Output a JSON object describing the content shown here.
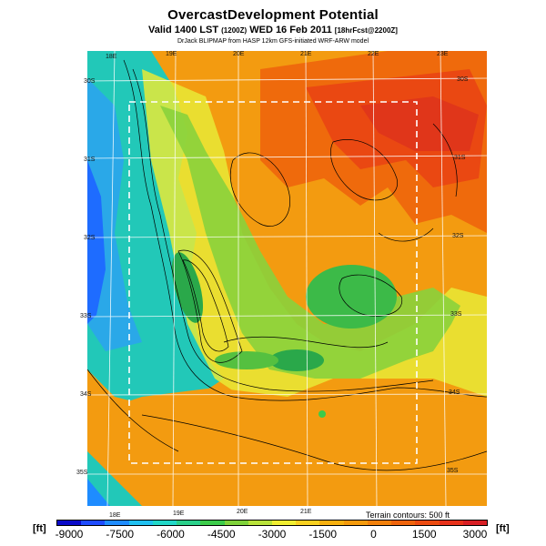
{
  "header": {
    "title": "OvercastDevelopment Potential",
    "valid_prefix": "Valid 1400 LST",
    "valid_code": "(1200Z)",
    "valid_date": "WED 16 Feb 2011",
    "valid_suffix": "[18hrFcst@2200Z]",
    "credit": "DrJack BLIPMAP from HASP 12km GFS-initiated WRF-ARW model"
  },
  "map": {
    "lon_labels_top": [
      "18E",
      "19E",
      "20E",
      "21E",
      "22E",
      "23E"
    ],
    "lon_labels_bottom": [
      "18E",
      "19E",
      "20E",
      "21E",
      "22E"
    ],
    "lat_labels_left": [
      "30S",
      "31S",
      "32S",
      "33S",
      "34S",
      "35S"
    ],
    "lat_labels_right": [
      "30S",
      "31S",
      "32S",
      "33S",
      "34S",
      "35S"
    ],
    "terrain_note": "Terrain contours: 500 ft"
  },
  "colorbar": {
    "unit": "[ft]",
    "ticks": [
      "-9000",
      "-7500",
      "-6000",
      "-4500",
      "-3000",
      "-1500",
      "0",
      "1500",
      "3000"
    ],
    "colors": [
      "#0a0ac8",
      "#1e4bff",
      "#1f8cff",
      "#20c0f0",
      "#22d8c8",
      "#2ad08a",
      "#3ccb4a",
      "#7fd23a",
      "#b8e23a",
      "#f0ee32",
      "#f8d020",
      "#f7b00f",
      "#f49a0c",
      "#f2800b",
      "#ef640c",
      "#ec4b10",
      "#e8321a",
      "#d81e24"
    ]
  }
}
